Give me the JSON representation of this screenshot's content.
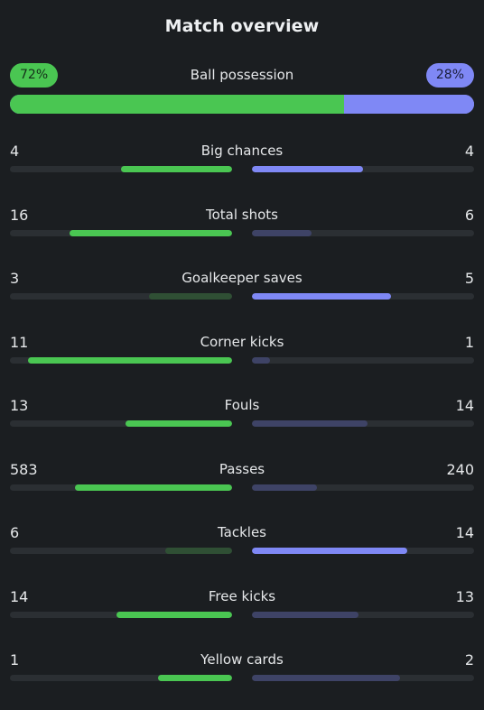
{
  "title": "Match overview",
  "possession": {
    "label": "Ball possession",
    "home": "72%",
    "away": "28%",
    "home_value": 72,
    "away_value": 28
  },
  "colors": {
    "home_strong": "#4ac652",
    "home_weak": "#2f4f34",
    "away_strong": "#7f88f5",
    "away_weak": "#3e4366",
    "track": "#2b2f33",
    "background": "#1b1e21"
  },
  "stats": [
    {
      "label": "Big chances",
      "home": "4",
      "away": "4",
      "home_frac": 0.5,
      "away_frac": 0.5,
      "leader": "both"
    },
    {
      "label": "Total shots",
      "home": "16",
      "away": "6",
      "home_frac": 0.73,
      "away_frac": 0.27,
      "leader": "home"
    },
    {
      "label": "Goalkeeper saves",
      "home": "3",
      "away": "5",
      "home_frac": 0.375,
      "away_frac": 0.625,
      "leader": "away"
    },
    {
      "label": "Corner kicks",
      "home": "11",
      "away": "1",
      "home_frac": 0.917,
      "away_frac": 0.083,
      "leader": "home"
    },
    {
      "label": "Fouls",
      "home": "13",
      "away": "14",
      "home_frac": 0.481,
      "away_frac": 0.519,
      "leader": "home"
    },
    {
      "label": "Passes",
      "home": "583",
      "away": "240",
      "home_frac": 0.708,
      "away_frac": 0.292,
      "leader": "home"
    },
    {
      "label": "Tackles",
      "home": "6",
      "away": "14",
      "home_frac": 0.3,
      "away_frac": 0.7,
      "leader": "away"
    },
    {
      "label": "Free kicks",
      "home": "14",
      "away": "13",
      "home_frac": 0.519,
      "away_frac": 0.481,
      "leader": "home"
    },
    {
      "label": "Yellow cards",
      "home": "1",
      "away": "2",
      "home_frac": 0.333,
      "away_frac": 0.667,
      "leader": "home"
    }
  ]
}
